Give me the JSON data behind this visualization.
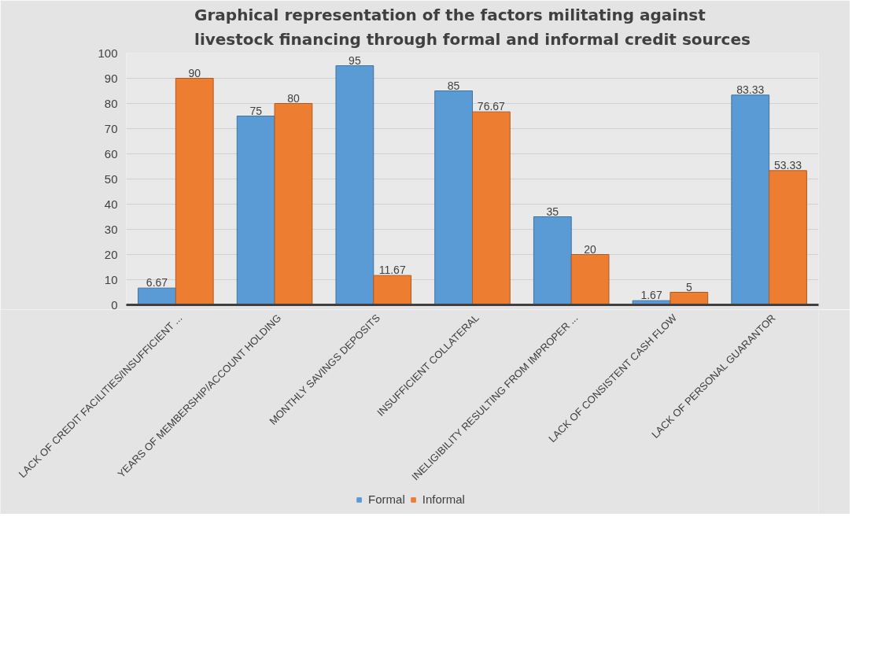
{
  "chart_data": {
    "type": "bar",
    "title": "Graphical representation of the factors militating against livestock financing through formal and informal credit sources",
    "categories": [
      "LACK OF CREDIT FACILITIES/INSUFFICIENT ...",
      "YEARS OF MEMBERSHIP/ACCOUNT HOLDING",
      "MONTHLY SAVINGS DEPOSITS",
      "INSUFFICIENT COLLATERAL",
      "INELIGIBILITY RESULTING FROM IMPROPER ...",
      "LACK OF CONSISTENT CASH FLOW",
      "LACK OF PERSONAL GUARANTOR"
    ],
    "series": [
      {
        "name": "Formal",
        "color": "#5b9bd5",
        "values": [
          6.67,
          75,
          95,
          85,
          35,
          1.67,
          83.33
        ]
      },
      {
        "name": "Informal",
        "color": "#ed7d31",
        "values": [
          90,
          80,
          11.67,
          76.67,
          20,
          5,
          53.33
        ]
      }
    ],
    "ylim": [
      0,
      100
    ],
    "yticks": [
      0,
      10,
      20,
      30,
      40,
      50,
      60,
      70,
      80,
      90,
      100
    ],
    "grid": "y",
    "legend": "bottom",
    "data_labels": true
  }
}
